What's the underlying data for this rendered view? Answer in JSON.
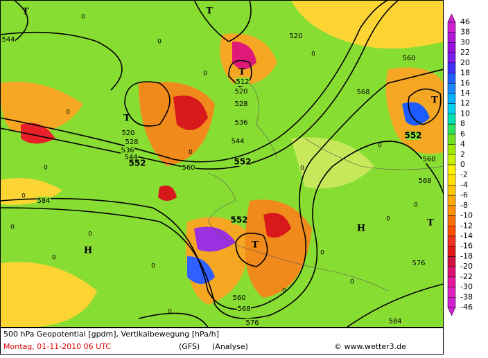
{
  "map": {
    "pressure_centers": [
      "T",
      "T",
      "T",
      "T",
      "T",
      "T",
      "T",
      "H",
      "H"
    ],
    "contour_labels": [
      544,
      520,
      512,
      520,
      528,
      536,
      544,
      552,
      520,
      528,
      536,
      544,
      552,
      560,
      584,
      552,
      560,
      568,
      552,
      560,
      568,
      576,
      560,
      568,
      576,
      584
    ],
    "zero_labels": [
      0,
      0,
      0,
      0,
      0,
      0,
      0,
      0,
      0,
      0,
      0,
      0,
      0,
      0,
      0,
      0,
      0,
      0,
      0,
      0
    ]
  },
  "legend": {
    "labels": [
      46,
      38,
      30,
      22,
      20,
      18,
      16,
      14,
      12,
      10,
      8,
      6,
      4,
      2,
      0,
      -2,
      -4,
      -6,
      -8,
      -10,
      -12,
      -14,
      -16,
      -18,
      -20,
      -22,
      -30,
      -38,
      -46
    ]
  },
  "footer": {
    "line1": "500 hPa Geopotential [gpdm], Vertikalbewegung [hPa/h]",
    "date": "Montag, 01-11-2010  06 UTC",
    "model": "(GFS)",
    "run": "(Analyse)",
    "copyright": "© www.wetter3.de"
  }
}
